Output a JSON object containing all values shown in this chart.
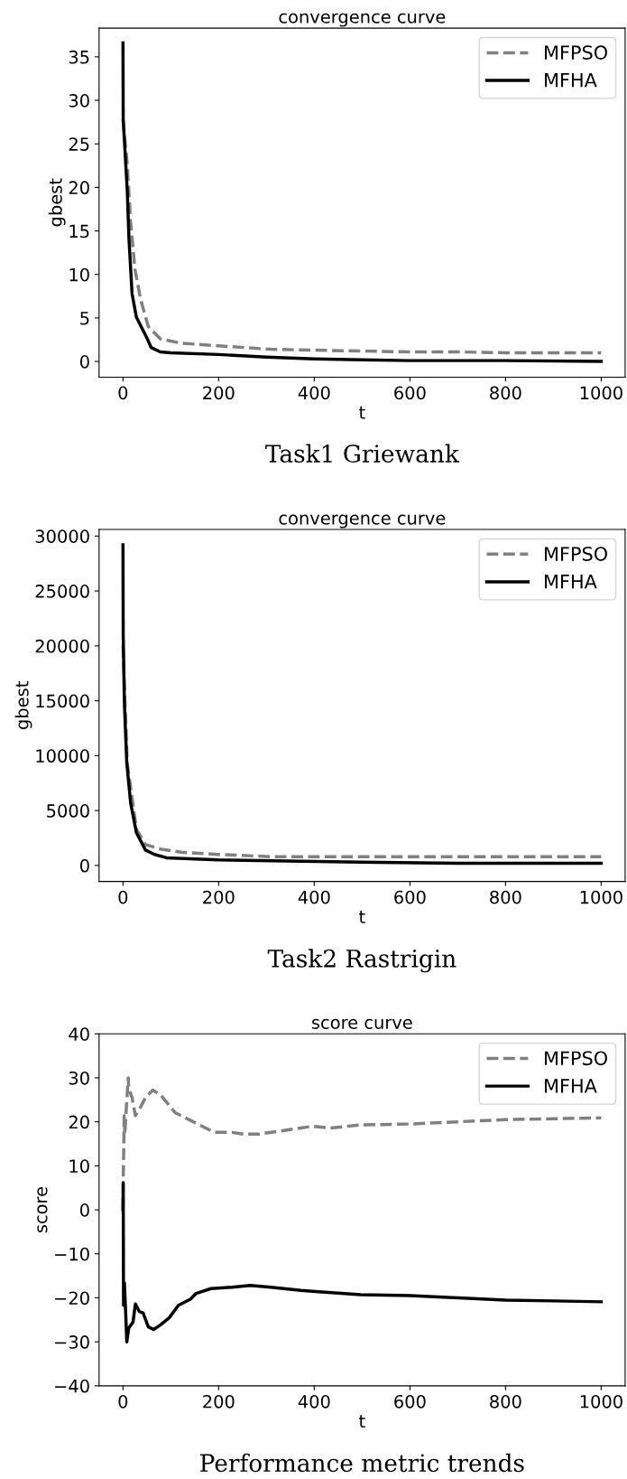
{
  "chart_data": [
    {
      "type": "line",
      "title": "convergence curve",
      "xlabel": "t",
      "ylabel": "gbest",
      "annotations": [
        "Task1 Griewank"
      ],
      "xlim": [
        -50,
        1050
      ],
      "xticks": [
        0,
        200,
        400,
        600,
        800,
        1000
      ],
      "ylim": [
        -1.8,
        38.3
      ],
      "yticks": [
        0,
        5,
        10,
        15,
        20,
        25,
        30,
        35
      ],
      "legend": "top right",
      "grid": false,
      "marker": "none",
      "series": [
        {
          "name": "MFPSO",
          "color": "#808080",
          "line_style": "dashed",
          "x": [
            0,
            9,
            16,
            25,
            37,
            53,
            78,
            122,
            200,
            309,
            400,
            497,
            600,
            700,
            800,
            900,
            1000
          ],
          "values": [
            27.8,
            22.6,
            16,
            10.6,
            7.1,
            4.0,
            2.6,
            2.1,
            1.8,
            1.4,
            1.3,
            1.2,
            1.1,
            1.1,
            1.0,
            1.0,
            1.0
          ]
        },
        {
          "name": "MFHA",
          "color": "#000000",
          "line_style": "solid",
          "x": [
            0,
            0.5,
            9,
            12.5,
            19,
            28,
            50,
            59,
            78,
            100,
            200,
            300,
            400,
            500,
            600,
            800,
            1000
          ],
          "values": [
            36.6,
            27.8,
            19.6,
            14.1,
            7.8,
            5.1,
            2.7,
            1.6,
            1.1,
            1.0,
            0.8,
            0.5,
            0.3,
            0.2,
            0.1,
            0.1,
            0.0
          ]
        }
      ]
    },
    {
      "type": "line",
      "title": "convergence curve",
      "xlabel": "t",
      "ylabel": "gbest",
      "annotations": [
        "Task2 Rastrigin"
      ],
      "xlim": [
        -50,
        1050
      ],
      "xticks": [
        0,
        200,
        400,
        600,
        800,
        1000
      ],
      "ylim": [
        -1460,
        30600
      ],
      "yticks": [
        0,
        5000,
        10000,
        15000,
        20000,
        25000,
        30000
      ],
      "legend": "top right",
      "grid": false,
      "marker": "none",
      "series": [
        {
          "name": "MFPSO",
          "color": "#808080",
          "line_style": "dashed",
          "x": [
            0,
            9,
            28,
            47,
            78,
            122,
            200,
            309,
            497,
            700,
            1000
          ],
          "values": [
            20000,
            9300,
            3300,
            1900,
            1500,
            1200,
            1000,
            800,
            800,
            800,
            800
          ]
        },
        {
          "name": "MFHA",
          "color": "#000000",
          "line_style": "solid",
          "x": [
            0,
            0.5,
            3,
            8,
            16,
            28,
            47,
            66,
            91,
            200,
            497,
            700,
            1000
          ],
          "values": [
            29200,
            21000,
            14700,
            9300,
            5700,
            3000,
            1400,
            1000,
            700,
            500,
            300,
            200,
            200
          ]
        }
      ]
    },
    {
      "type": "line",
      "title": "score curve",
      "xlabel": "t",
      "ylabel": "score",
      "annotations": [
        "Performance metric trends"
      ],
      "xlim": [
        -50,
        1050
      ],
      "xticks": [
        0,
        200,
        400,
        600,
        800,
        1000
      ],
      "ylim": [
        -40,
        40
      ],
      "yticks": [
        {
          "value": -40,
          "label": "−40"
        },
        {
          "value": -30,
          "label": "−30"
        },
        {
          "value": -20,
          "label": "−20"
        },
        {
          "value": -10,
          "label": "−10"
        },
        0,
        10,
        20,
        30,
        40
      ],
      "legend": "top right",
      "grid": false,
      "marker": "none",
      "series": [
        {
          "name": "MFPSO",
          "color": "#808080",
          "line_style": "dashed",
          "x": [
            0,
            0.5,
            2,
            2.5,
            4,
            6,
            11,
            12,
            19,
            26,
            37,
            47,
            62,
            78,
            109,
            147,
            191,
            228,
            253,
            284,
            372,
            397,
            434,
            497,
            600,
            700,
            800,
            900,
            1000
          ],
          "values": [
            0,
            6.9,
            16.6,
            21.4,
            17.2,
            21.4,
            30,
            27.6,
            25.5,
            21.4,
            23.4,
            25.5,
            27.2,
            26.2,
            22.1,
            20,
            17.6,
            17.6,
            17.2,
            17.2,
            18.6,
            19,
            18.6,
            19.3,
            19.5,
            20,
            20.5,
            20.7,
            20.9
          ]
        },
        {
          "name": "MFHA",
          "color": "#000000",
          "line_style": "solid",
          "x": [
            0,
            0.5,
            1.2,
            3,
            5,
            8,
            12,
            21,
            26,
            34,
            42,
            53,
            64,
            78,
            97,
            116,
            141,
            153,
            184,
            228,
            266,
            309,
            372,
            409,
            497,
            600,
            700,
            800,
            900,
            1000
          ],
          "values": [
            0,
            6.2,
            -21.7,
            -16.6,
            -21.7,
            -30,
            -26.9,
            -25.5,
            -21.4,
            -23.1,
            -23.4,
            -26.6,
            -27.2,
            -26.2,
            -24.5,
            -21.7,
            -20.3,
            -19,
            -17.9,
            -17.6,
            -17.2,
            -17.6,
            -18.3,
            -18.6,
            -19.3,
            -19.5,
            -20,
            -20.5,
            -20.7,
            -20.9
          ]
        }
      ]
    }
  ]
}
